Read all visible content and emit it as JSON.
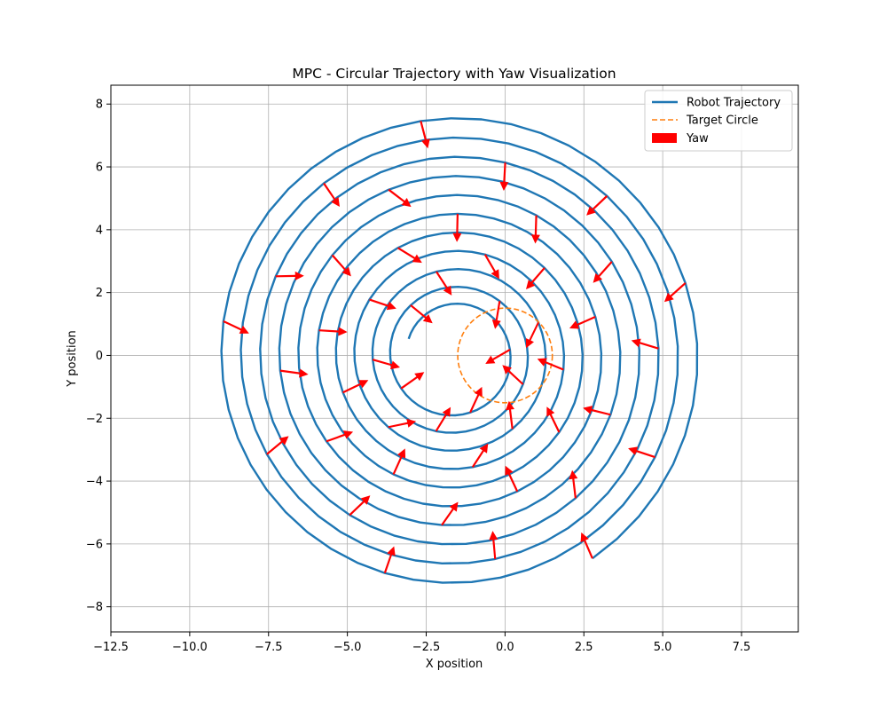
{
  "chart_data": {
    "type": "line",
    "title": "MPC - Circular Trajectory with Yaw Visualization",
    "xlabel": "X position",
    "ylabel": "Y position",
    "xlim": [
      -12.5,
      9.3
    ],
    "ylim": [
      -8.8,
      8.6
    ],
    "grid": true,
    "legend_position": "top-right",
    "xticks": [
      {
        "value": -12.5,
        "label": "−12.5"
      },
      {
        "value": -10.0,
        "label": "−10.0"
      },
      {
        "value": -7.5,
        "label": "−7.5"
      },
      {
        "value": -5.0,
        "label": "−5.0"
      },
      {
        "value": -2.5,
        "label": "−2.5"
      },
      {
        "value": 0.0,
        "label": "0.0"
      },
      {
        "value": 2.5,
        "label": "2.5"
      },
      {
        "value": 5.0,
        "label": "5.0"
      },
      {
        "value": 7.5,
        "label": "7.5"
      }
    ],
    "yticks": [
      {
        "value": 8,
        "label": "8"
      },
      {
        "value": 6,
        "label": "6"
      },
      {
        "value": 4,
        "label": "4"
      },
      {
        "value": 2,
        "label": "2"
      },
      {
        "value": 0,
        "label": "0"
      },
      {
        "value": -2,
        "label": "−2"
      },
      {
        "value": -4,
        "label": "−4"
      },
      {
        "value": -6,
        "label": "−6"
      },
      {
        "value": -8,
        "label": "−8"
      }
    ],
    "series": [
      {
        "name": "Robot Trajectory",
        "style": "solid",
        "color": "#1f77b4",
        "shape": "spiral",
        "center": [
          -1.6,
          0.0
        ],
        "start_radius": 7.8,
        "end_radius": 1.55,
        "turns": 10.6,
        "start_point": [
          3.0,
          -6.8
        ]
      },
      {
        "name": "Target Circle",
        "style": "dashed",
        "color": "#ff7f0e",
        "shape": "circle",
        "center": [
          0.0,
          0.0
        ],
        "radius": 1.5
      },
      {
        "name": "Yaw",
        "style": "arrows",
        "color": "#ff0000",
        "arrow_count": 48
      }
    ]
  }
}
